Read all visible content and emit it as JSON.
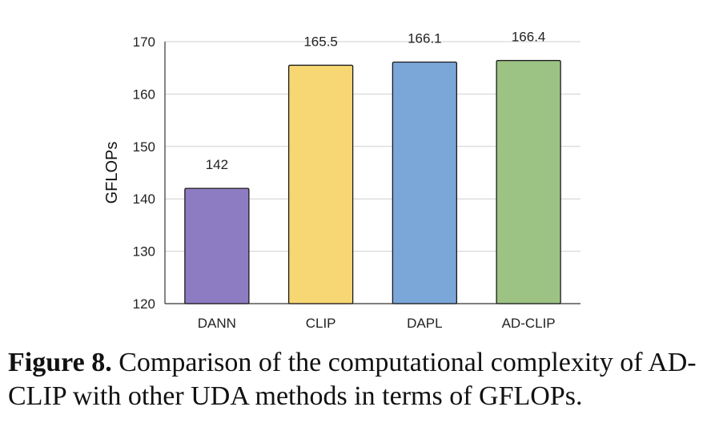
{
  "chart_data": {
    "type": "bar",
    "categories": [
      "DANN",
      "CLIP",
      "DAPL",
      "AD-CLIP"
    ],
    "values": [
      142,
      165.5,
      166.1,
      166.4
    ],
    "value_labels": [
      "142",
      "165.5",
      "166.1",
      "166.4"
    ],
    "ylabel": "GFLOPs",
    "xlabel": "",
    "ylim": [
      120,
      170
    ],
    "yticks": [
      120,
      130,
      140,
      150,
      160,
      170
    ],
    "grid": true,
    "colors": [
      "#8e7cc3",
      "#f7d774",
      "#7aa6d8",
      "#9dc384"
    ]
  },
  "caption": {
    "label": "Figure 8.",
    "text": " Comparison of the computational complexity of AD-CLIP with other UDA methods in terms of GFLOPs."
  }
}
